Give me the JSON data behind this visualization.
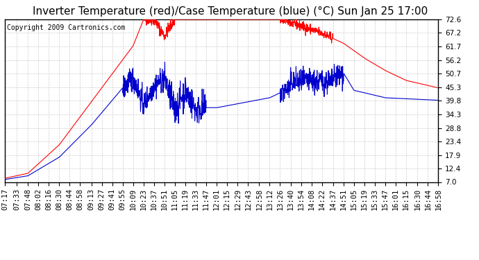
{
  "title": "Inverter Temperature (red)/Case Temperature (blue) (°C) Sun Jan 25 17:00",
  "copyright": "Copyright 2009 Cartronics.com",
  "yticks": [
    7.0,
    12.4,
    17.9,
    23.4,
    28.8,
    34.3,
    39.8,
    45.3,
    50.7,
    56.2,
    61.7,
    67.2,
    72.6
  ],
  "ymin": 7.0,
  "ymax": 72.6,
  "bg_color": "#ffffff",
  "plot_bg_color": "#ffffff",
  "grid_color": "#cccccc",
  "red_color": "#ff0000",
  "blue_color": "#0000cc",
  "title_fontsize": 11,
  "copyright_fontsize": 7,
  "tick_fontsize": 7.5,
  "xtick_strs": [
    "07:17",
    "07:33",
    "07:48",
    "08:02",
    "08:16",
    "08:30",
    "08:44",
    "08:58",
    "09:13",
    "09:27",
    "09:41",
    "09:55",
    "10:09",
    "10:23",
    "10:37",
    "10:51",
    "11:05",
    "11:19",
    "11:33",
    "11:47",
    "12:01",
    "12:15",
    "12:29",
    "12:43",
    "12:58",
    "13:12",
    "13:26",
    "13:40",
    "13:54",
    "14:08",
    "14:22",
    "14:37",
    "14:51",
    "15:05",
    "15:19",
    "15:33",
    "15:47",
    "16:01",
    "16:15",
    "16:30",
    "16:44",
    "16:58"
  ]
}
